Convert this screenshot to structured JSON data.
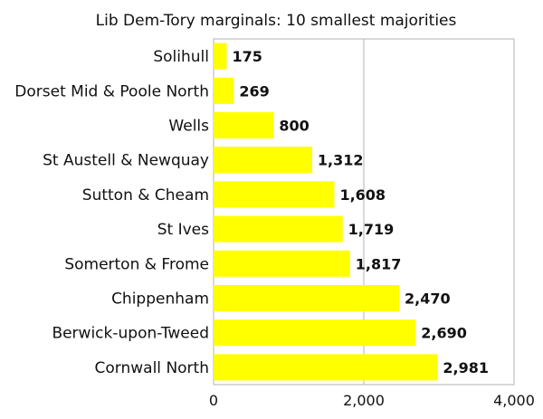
{
  "chart_data": {
    "type": "bar",
    "orientation": "horizontal",
    "title": "Lib Dem-Tory marginals: 10 smallest majorities",
    "categories": [
      "Solihull",
      "Dorset Mid & Poole North",
      "Wells",
      "St Austell & Newquay",
      "Sutton & Cheam",
      "St Ives",
      "Somerton & Frome",
      "Chippenham",
      "Berwick-upon-Tweed",
      "Cornwall North"
    ],
    "values": [
      175,
      269,
      800,
      1312,
      1608,
      1719,
      1817,
      2470,
      2690,
      2981
    ],
    "value_labels": [
      "175",
      "269",
      "800",
      "1,312",
      "1,608",
      "1,719",
      "1,817",
      "2,470",
      "2,690",
      "2,981"
    ],
    "xlim": [
      0,
      4000
    ],
    "x_ticks": [
      0,
      2000,
      4000
    ],
    "x_tick_labels": [
      "0",
      "2,000",
      "4,000"
    ],
    "xlabel": "",
    "ylabel": "",
    "grid": true,
    "legend": "none",
    "bar_color": "#ffff00"
  }
}
